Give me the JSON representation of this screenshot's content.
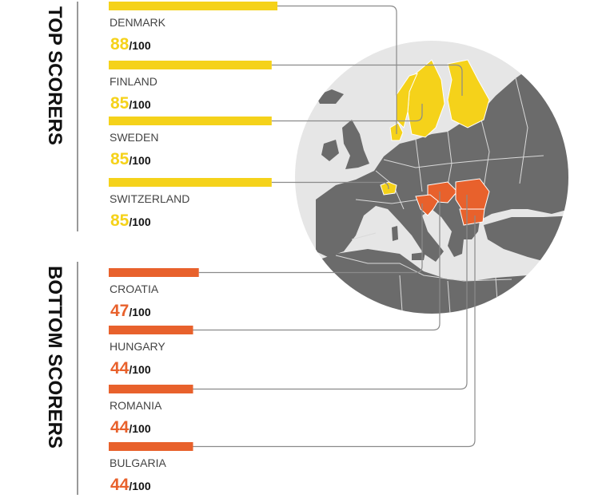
{
  "chart_data": {
    "type": "bar",
    "scale_max": 100,
    "max_suffix": "/100",
    "groups": [
      {
        "label": "TOP SCORERS",
        "color": "#f5d21a",
        "items": [
          {
            "country": "DENMARK",
            "score": 88
          },
          {
            "country": "FINLAND",
            "score": 85
          },
          {
            "country": "SWEDEN",
            "score": 85
          },
          {
            "country": "SWITZERLAND",
            "score": 85
          }
        ]
      },
      {
        "label": "BOTTOM SCORERS",
        "color": "#e8612c",
        "items": [
          {
            "country": "CROATIA",
            "score": 47
          },
          {
            "country": "HUNGARY",
            "score": 44
          },
          {
            "country": "ROMANIA",
            "score": 44
          },
          {
            "country": "BULGARIA",
            "score": 44
          }
        ]
      }
    ],
    "map": {
      "land_color": "#6b6b6b",
      "sea_color": "#e6e6e6",
      "border_color": "#d9d9d9"
    }
  }
}
